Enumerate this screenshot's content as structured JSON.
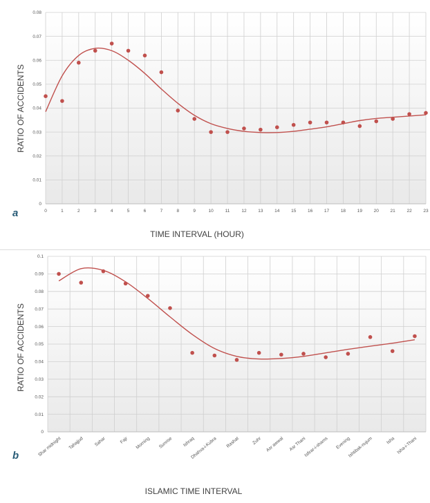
{
  "chart_data": [
    {
      "type": "scatter",
      "panel_label": "a",
      "xlabel": "TIME INTERVAL (HOUR)",
      "ylabel": "RATIO OF ACCIDENTS",
      "categories": [
        "0",
        "1",
        "2",
        "3",
        "4",
        "5",
        "6",
        "7",
        "8",
        "9",
        "10",
        "11",
        "12",
        "13",
        "14",
        "15",
        "16",
        "17",
        "18",
        "19",
        "20",
        "21",
        "22",
        "23"
      ],
      "values": [
        0.045,
        0.043,
        0.059,
        0.064,
        0.067,
        0.064,
        0.062,
        0.055,
        0.039,
        0.0355,
        0.03,
        0.03,
        0.0315,
        0.031,
        0.032,
        0.033,
        0.034,
        0.034,
        0.034,
        0.0325,
        0.0345,
        0.0355,
        0.0375,
        0.038
      ],
      "trendline": [
        0.0385,
        0.0535,
        0.062,
        0.065,
        0.064,
        0.06,
        0.0545,
        0.048,
        0.042,
        0.037,
        0.0335,
        0.0315,
        0.0303,
        0.0298,
        0.0298,
        0.0303,
        0.0312,
        0.0322,
        0.0335,
        0.0348,
        0.0357,
        0.0362,
        0.0367,
        0.0372
      ],
      "ylim": [
        0,
        0.08
      ],
      "yticks": [
        "0",
        "0.01",
        "0.02",
        "0.03",
        "0.04",
        "0.05",
        "0.06",
        "0.07",
        "0.08"
      ],
      "grid": true,
      "point_color": "#c0504d",
      "line_color": "#c0504d"
    },
    {
      "type": "scatter",
      "panel_label": "b",
      "xlabel": "ISLAMIC TIME INTERVAL",
      "ylabel": "RATIO OF ACCIDENTS",
      "categories": [
        "Shar midnight",
        "Tahajjud",
        "Sahar",
        "Fajr",
        "Morning",
        "Sunrise",
        "Ishraq",
        "Dhahva-i-Kubra",
        "Rashat",
        "Zuhr",
        "Asr awwal",
        "Asr Thani",
        "Isfirar-i-shams",
        "Evening",
        "Ishtibak-nujum",
        "Isha",
        "Isha-i-Thani"
      ],
      "values": [
        0.09,
        0.085,
        0.0915,
        0.0845,
        0.0775,
        0.0705,
        0.045,
        0.0435,
        0.041,
        0.045,
        0.044,
        0.0445,
        0.0425,
        0.0445,
        0.054,
        0.046,
        0.0545
      ],
      "trendline": [
        0.086,
        0.093,
        0.092,
        0.0855,
        0.076,
        0.0655,
        0.0555,
        0.0475,
        0.043,
        0.0415,
        0.0418,
        0.043,
        0.045,
        0.047,
        0.0488,
        0.0505,
        0.0525
      ],
      "ylim": [
        0,
        0.1
      ],
      "yticks": [
        "0",
        "0.01",
        "0.02",
        "0.03",
        "0.04",
        "0.05",
        "0.06",
        "0.07",
        "0.08",
        "0.09",
        "0.1"
      ],
      "grid": true,
      "point_color": "#c0504d",
      "line_color": "#c0504d"
    }
  ]
}
